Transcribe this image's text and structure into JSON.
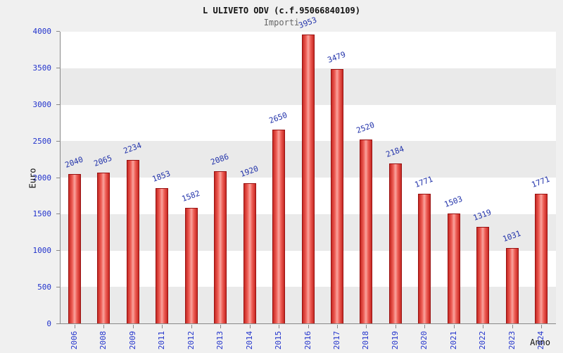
{
  "header": {
    "title": "L ULIVETO ODV (c.f.95066840109)",
    "subtitle": "Importi"
  },
  "chart_data": {
    "type": "bar",
    "title": "L ULIVETO ODV (c.f.95066840109)",
    "subtitle": "Importi",
    "xlabel": "Anno",
    "ylabel": "Euro",
    "categories": [
      "2006",
      "2008",
      "2009",
      "2011",
      "2012",
      "2013",
      "2014",
      "2015",
      "2016",
      "2017",
      "2018",
      "2019",
      "2020",
      "2021",
      "2022",
      "2023",
      "2024"
    ],
    "values": [
      2040,
      2065,
      2234,
      1853,
      1582,
      2086,
      1920,
      2650,
      3953,
      3479,
      2520,
      2184,
      1771,
      1503,
      1319,
      1031,
      1771
    ],
    "ylim": [
      0,
      4000
    ],
    "ytick_step": 500,
    "grid": "alternating-bands",
    "legend": "none",
    "bar_color": "#e8413c",
    "bar_border_color": "#991111",
    "value_label_color": "#2233aa",
    "tick_label_color": "#2233cc"
  }
}
